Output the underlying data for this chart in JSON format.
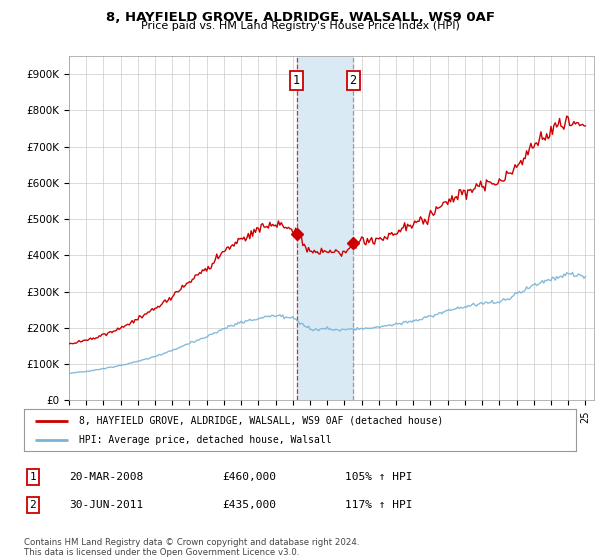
{
  "title": "8, HAYFIELD GROVE, ALDRIDGE, WALSALL, WS9 0AF",
  "subtitle": "Price paid vs. HM Land Registry's House Price Index (HPI)",
  "ylim": [
    0,
    950000
  ],
  "yticks": [
    0,
    100000,
    200000,
    300000,
    400000,
    500000,
    600000,
    700000,
    800000,
    900000
  ],
  "ytick_labels": [
    "£0",
    "£100K",
    "£200K",
    "£300K",
    "£400K",
    "£500K",
    "£600K",
    "£700K",
    "£800K",
    "£900K"
  ],
  "sale1_yr": 2008.22,
  "sale1_pr": 460000,
  "sale2_yr": 2011.5,
  "sale2_pr": 435000,
  "highlight_color": "#daeaf5",
  "vline1_color": "#cc3333",
  "vline2_color": "#999999",
  "house_line_color": "#cc0000",
  "hpi_line_color": "#7ab4d8",
  "legend_house": "8, HAYFIELD GROVE, ALDRIDGE, WALSALL, WS9 0AF (detached house)",
  "legend_hpi": "HPI: Average price, detached house, Walsall",
  "table_rows": [
    {
      "num": "1",
      "date": "20-MAR-2008",
      "price": "£460,000",
      "hpi": "105% ↑ HPI"
    },
    {
      "num": "2",
      "date": "30-JUN-2011",
      "price": "£435,000",
      "hpi": "117% ↑ HPI"
    }
  ],
  "footer": "Contains HM Land Registry data © Crown copyright and database right 2024.\nThis data is licensed under the Open Government Licence v3.0.",
  "background_color": "#ffffff",
  "grid_color": "#cccccc",
  "hpi_base_values": [
    75000,
    80000,
    88000,
    96000,
    108000,
    122000,
    138000,
    158000,
    175000,
    198000,
    215000,
    228000,
    235000,
    228000,
    198000,
    198000,
    195000,
    198000,
    202000,
    210000,
    220000,
    232000,
    248000,
    260000,
    268000,
    270000,
    292000,
    318000,
    335000,
    348000,
    342000
  ],
  "hpi_years": [
    1995,
    1996,
    1997,
    1998,
    1999,
    2000,
    2001,
    2002,
    2003,
    2004,
    2005,
    2006,
    2007,
    2008,
    2009,
    2010,
    2011,
    2012,
    2013,
    2014,
    2015,
    2016,
    2017,
    2018,
    2019,
    2020,
    2021,
    2022,
    2023,
    2024,
    2025
  ]
}
